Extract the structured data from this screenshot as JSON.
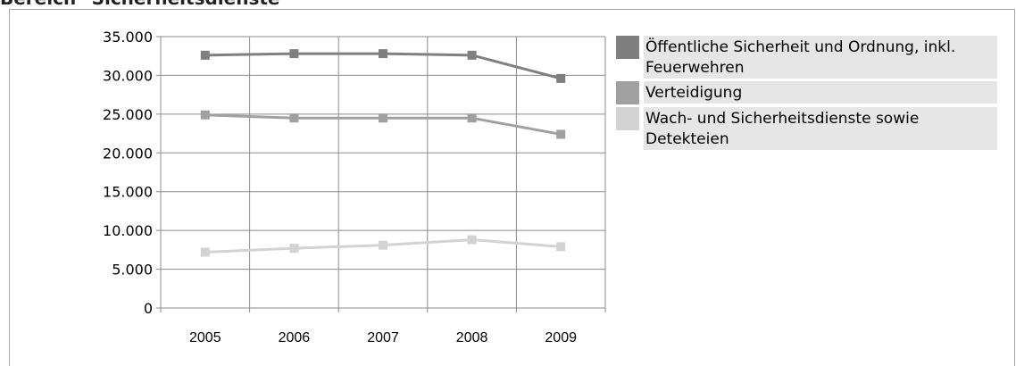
{
  "chart_data": {
    "type": "line",
    "title": "Bereich \"Sicherheitsdienste\"",
    "categories": [
      "2005",
      "2006",
      "2007",
      "2008",
      "2009"
    ],
    "ylim": [
      0,
      35000
    ],
    "yticks": [
      "0",
      "5.000",
      "10.000",
      "15.000",
      "20.000",
      "25.000",
      "30.000",
      "35.000"
    ],
    "grid": true,
    "legend_position": "right",
    "series": [
      {
        "name": "Öffentliche Sicherheit und Ordnung, inkl. Feuerwehren",
        "values": [
          32600,
          32800,
          32800,
          32600,
          29600
        ],
        "color": "#7f7f7f"
      },
      {
        "name": "Verteidigung",
        "values": [
          24900,
          24500,
          24500,
          24500,
          22400
        ],
        "color": "#a0a0a0"
      },
      {
        "name": "Wach- und Sicherheitsdienste sowie Detekteien",
        "values": [
          7200,
          7700,
          8100,
          8800,
          7900
        ],
        "color": "#d3d3d3"
      }
    ]
  }
}
